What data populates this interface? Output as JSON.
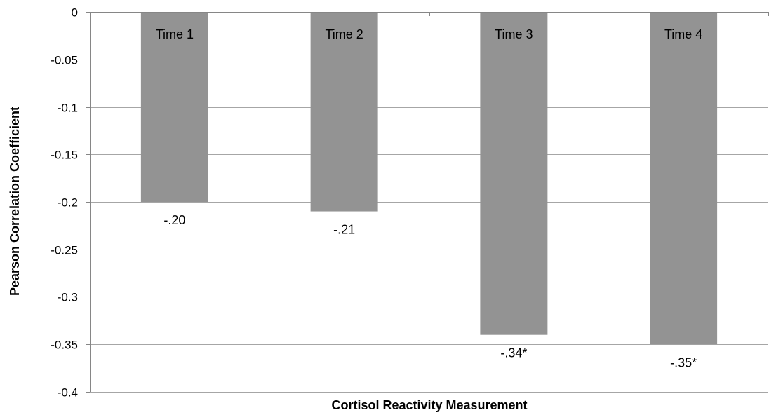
{
  "chart_data": {
    "type": "bar",
    "categories": [
      "Time 1",
      "Time 2",
      "Time 3",
      "Time 4"
    ],
    "values": [
      -0.2,
      -0.21,
      -0.34,
      -0.35
    ],
    "data_labels": [
      "-.20",
      "-.21",
      "-.34*",
      "-.35*"
    ],
    "xlabel": "Cortisol Reactivity Measurement",
    "ylabel": "Pearson Correlation Coefficient",
    "ylim": [
      -0.4,
      0
    ],
    "y_ticks": [
      0,
      -0.05,
      -0.1,
      -0.15,
      -0.2,
      -0.25,
      -0.3,
      -0.35,
      -0.4
    ],
    "y_tick_labels": [
      "0",
      "-0.05",
      "-0.1",
      "-0.15",
      "-0.2",
      "-0.25",
      "-0.3",
      "-0.35",
      "-0.4"
    ],
    "grid": true,
    "legend": "none",
    "bar_color": "#939393",
    "gridline_color": "#a6a6a6"
  }
}
